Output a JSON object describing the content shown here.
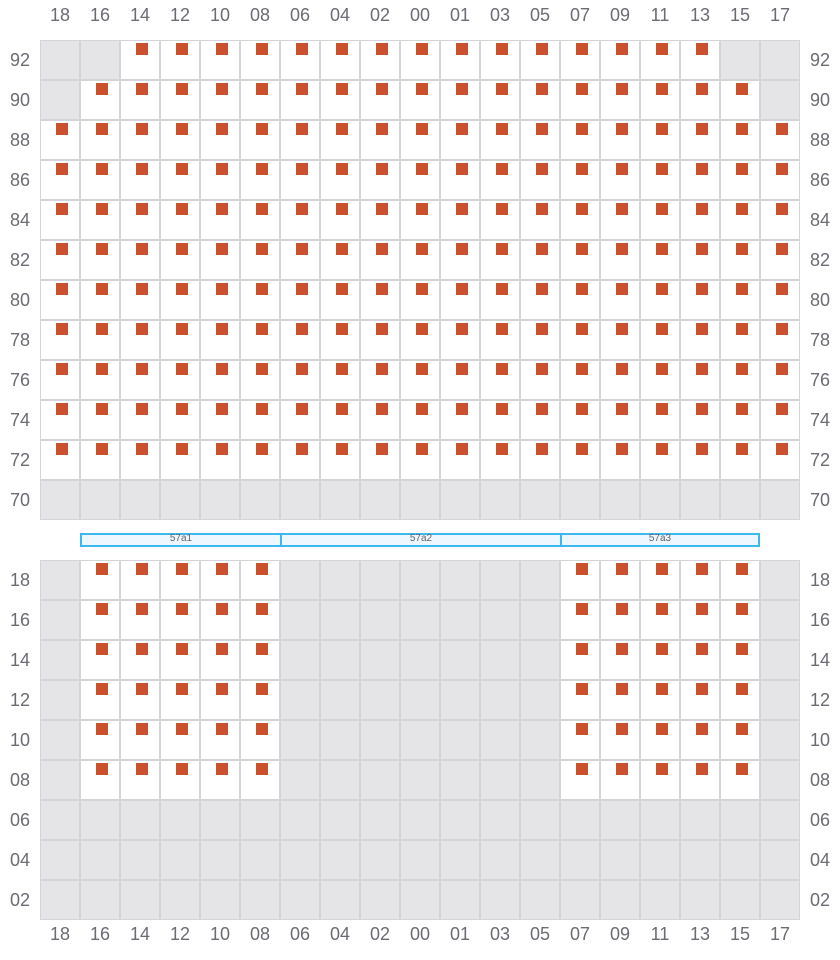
{
  "columns": [
    "18",
    "16",
    "14",
    "12",
    "10",
    "08",
    "06",
    "04",
    "02",
    "00",
    "01",
    "03",
    "05",
    "07",
    "09",
    "11",
    "13",
    "15",
    "17"
  ],
  "colors": {
    "seat_marker": "#c9522c",
    "unavailable": "#e5e5e8",
    "available": "#ffffff",
    "section_border": "#3bb8ef"
  },
  "legend_note": "x = cell with marker, . = unavailable cell",
  "top_block": {
    "rows": [
      {
        "label": "92",
        "cells": "..xxxxxxxxxxxxxxx.."
      },
      {
        "label": "90",
        "cells": ".xxxxxxxxxxxxxxxxx."
      },
      {
        "label": "88",
        "cells": "xxxxxxxxxxxxxxxxxxx"
      },
      {
        "label": "86",
        "cells": "xxxxxxxxxxxxxxxxxxx"
      },
      {
        "label": "84",
        "cells": "xxxxxxxxxxxxxxxxxxx"
      },
      {
        "label": "82",
        "cells": "xxxxxxxxxxxxxxxxxxx"
      },
      {
        "label": "80",
        "cells": "xxxxxxxxxxxxxxxxxxx"
      },
      {
        "label": "78",
        "cells": "xxxxxxxxxxxxxxxxxxx"
      },
      {
        "label": "76",
        "cells": "xxxxxxxxxxxxxxxxxxx"
      },
      {
        "label": "74",
        "cells": "xxxxxxxxxxxxxxxxxxx"
      },
      {
        "label": "72",
        "cells": "xxxxxxxxxxxxxxxxxxx"
      },
      {
        "label": "70",
        "cells": "..................."
      }
    ]
  },
  "sections": [
    {
      "label": "57a1",
      "from_col": "16",
      "to_col": "08"
    },
    {
      "label": "57a2",
      "from_col": "06",
      "to_col": "05"
    },
    {
      "label": "57a3",
      "from_col": "07",
      "to_col": "15"
    }
  ],
  "bottom_block": {
    "rows": [
      {
        "label": "18",
        "cells": ".xxxxx.......xxxxx."
      },
      {
        "label": "16",
        "cells": ".xxxxx.......xxxxx."
      },
      {
        "label": "14",
        "cells": ".xxxxx.......xxxxx."
      },
      {
        "label": "12",
        "cells": ".xxxxx.......xxxxx."
      },
      {
        "label": "10",
        "cells": ".xxxxx.......xxxxx."
      },
      {
        "label": "08",
        "cells": ".xxxxx.......xxxxx."
      },
      {
        "label": "06",
        "cells": "..................."
      },
      {
        "label": "04",
        "cells": "..................."
      },
      {
        "label": "02",
        "cells": "..................."
      }
    ]
  }
}
